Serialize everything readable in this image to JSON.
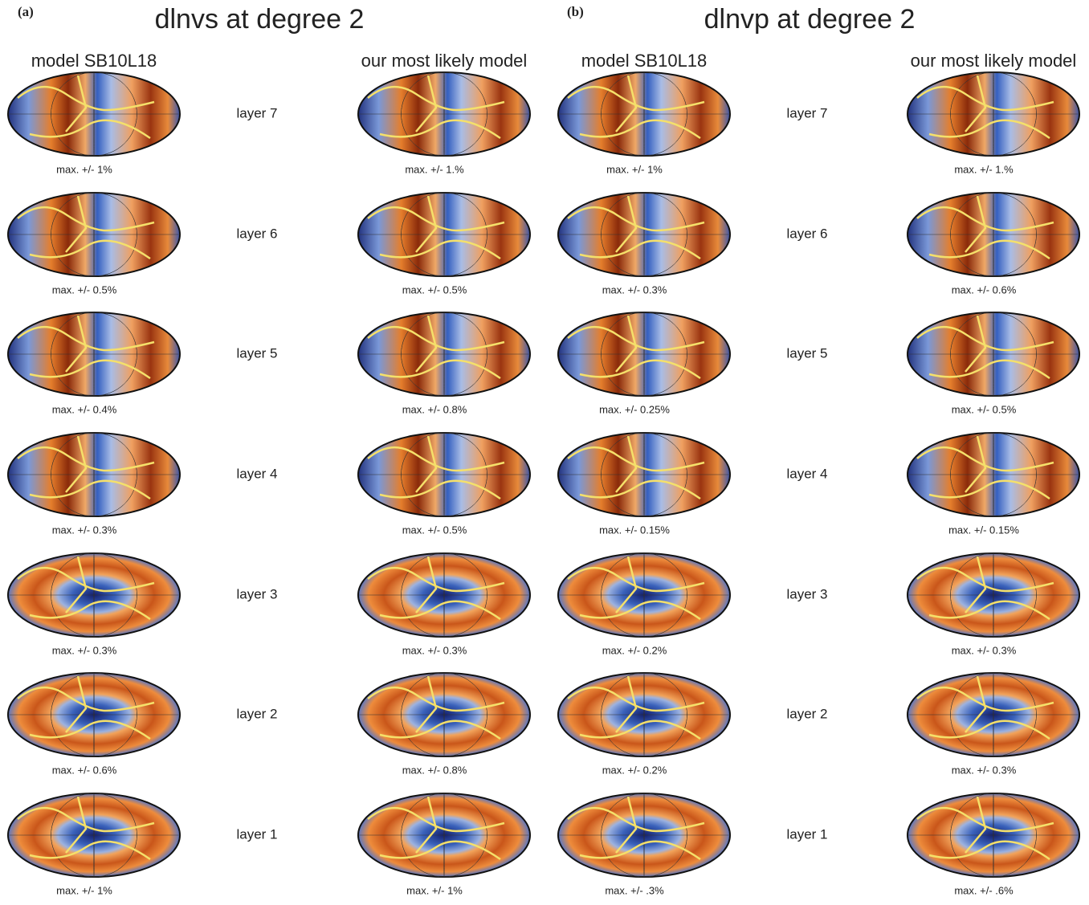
{
  "panels": [
    {
      "label": "(a)",
      "title": "dlnvs at degree 2",
      "columns": [
        "model SB10L18",
        "our most likely model"
      ],
      "layers": [
        {
          "label": "layer 7",
          "captions": [
            "max. +/- 1%",
            "max. +/- 1.%"
          ]
        },
        {
          "label": "layer 6",
          "captions": [
            "max. +/- 0.5%",
            "max. +/- 0.5%"
          ]
        },
        {
          "label": "layer 5",
          "captions": [
            "max. +/- 0.4%",
            "max. +/- 0.8%"
          ]
        },
        {
          "label": "layer 4",
          "captions": [
            "max. +/- 0.3%",
            "max. +/- 0.5%"
          ]
        },
        {
          "label": "layer 3",
          "captions": [
            "max. +/- 0.3%",
            "max. +/- 0.3%"
          ]
        },
        {
          "label": "layer 2",
          "captions": [
            "max. +/- 0.6%",
            "max. +/- 0.8%"
          ]
        },
        {
          "label": "layer 1",
          "captions": [
            "max. +/- 1%",
            "max. +/- 1%"
          ]
        }
      ]
    },
    {
      "label": "(b)",
      "title": "dlnvp at degree 2",
      "columns": [
        "model SB10L18",
        "our most likely model"
      ],
      "layers": [
        {
          "label": "layer 7",
          "captions": [
            "max. +/- 1%",
            "max. +/- 1.%"
          ]
        },
        {
          "label": "layer 6",
          "captions": [
            "max. +/- 0.3%",
            "max. +/- 0.6%"
          ]
        },
        {
          "label": "layer 5",
          "captions": [
            "max. +/- 0.25%",
            "max. +/- 0.5%"
          ]
        },
        {
          "label": "layer 4",
          "captions": [
            "max. +/- 0.15%",
            "max. +/- 0.15%"
          ]
        },
        {
          "label": "layer 3",
          "captions": [
            "max. +/- 0.2%",
            "max. +/- 0.3%"
          ]
        },
        {
          "label": "layer 2",
          "captions": [
            "max. +/- 0.2%",
            "max. +/- 0.3%"
          ]
        },
        {
          "label": "layer 1",
          "captions": [
            "max. +/- .3%",
            "max. +/- .6%"
          ]
        }
      ]
    }
  ]
}
